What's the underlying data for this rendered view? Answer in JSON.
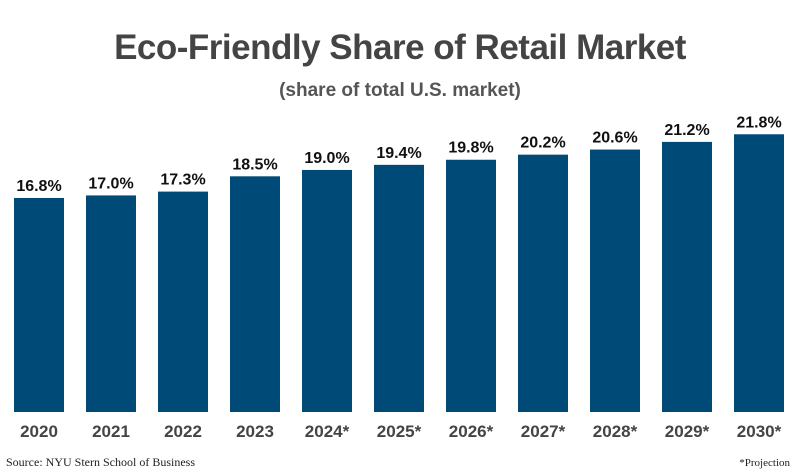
{
  "chart_data": {
    "type": "bar",
    "title": "Eco-Friendly Share of Retail Market",
    "subtitle": "(share of total U.S. market)",
    "categories": [
      "2020",
      "2021",
      "2022",
      "2023",
      "2024*",
      "2025*",
      "2026*",
      "2027*",
      "2028*",
      "2029*",
      "2030*"
    ],
    "values": [
      16.8,
      17.0,
      17.3,
      18.5,
      19.0,
      19.4,
      19.8,
      20.2,
      20.6,
      21.2,
      21.8
    ],
    "data_labels": [
      "16.8%",
      "17.0%",
      "17.3%",
      "18.5%",
      "19.0%",
      "19.4%",
      "19.8%",
      "20.2%",
      "20.6%",
      "21.2%",
      "21.8%"
    ],
    "xlabel": "",
    "ylabel": "",
    "ylim": [
      0,
      22
    ],
    "grid": false,
    "bar_color": "#004a77",
    "source": "Source: NYU Stern School of Business",
    "note": "*Projection"
  }
}
